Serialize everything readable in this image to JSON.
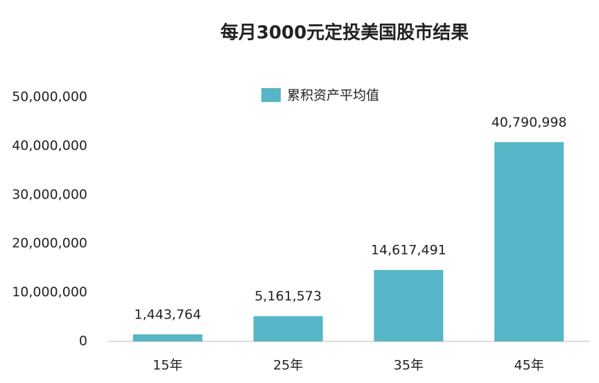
{
  "chart_data": {
    "type": "bar",
    "title": "每月3000元定投美国股市结果",
    "categories": [
      "15年",
      "25年",
      "35年",
      "45年"
    ],
    "series": [
      {
        "name": "累积资产平均值",
        "color": "#56b5c6",
        "values": [
          1443764,
          5161573,
          14617491,
          40790998
        ],
        "value_labels": [
          "1,443,764",
          "5,161,573",
          "14,617,491",
          "40,790,998"
        ]
      }
    ],
    "ylim": [
      0,
      50000000
    ],
    "yticks": [
      0,
      {
        "value": 10000000,
        "label": "10,000,000"
      },
      {
        "value": 20000000,
        "label": "20,000,000"
      },
      {
        "value": 30000000,
        "label": "30,000,000"
      },
      {
        "value": 40000000,
        "label": "40,000,000"
      },
      {
        "value": 50000000,
        "label": "50,000,000"
      }
    ],
    "grid": false,
    "legend": "top"
  }
}
